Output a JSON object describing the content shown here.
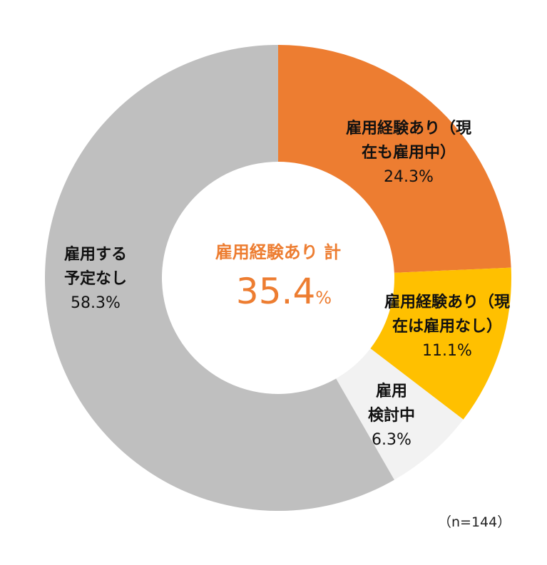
{
  "chart_data": {
    "type": "pie",
    "subtype": "donut",
    "categories": [
      "雇用経験あり（現在も雇用中）",
      "雇用経験あり（現在は雇用なし）",
      "雇用検討中",
      "雇用する予定なし"
    ],
    "values": [
      24.3,
      11.1,
      6.3,
      58.3
    ],
    "value_labels": [
      "24.3%",
      "11.1%",
      "6.3%",
      "58.3%"
    ],
    "label_lines": [
      [
        "雇用経験あり（現",
        "在も雇用中）"
      ],
      [
        "雇用経験あり（現",
        "在は雇用なし）"
      ],
      [
        "雇用",
        "検討中"
      ],
      [
        "雇用する",
        "予定なし"
      ]
    ],
    "colors": [
      "#ED7D31",
      "#FFC000",
      "#F2F2F2",
      "#BFBFBF"
    ],
    "center_label": "雇用経験あり 計",
    "center_value": "35.4",
    "center_unit": "%",
    "center_color": "#ED7D31",
    "note": "（n=144）"
  }
}
